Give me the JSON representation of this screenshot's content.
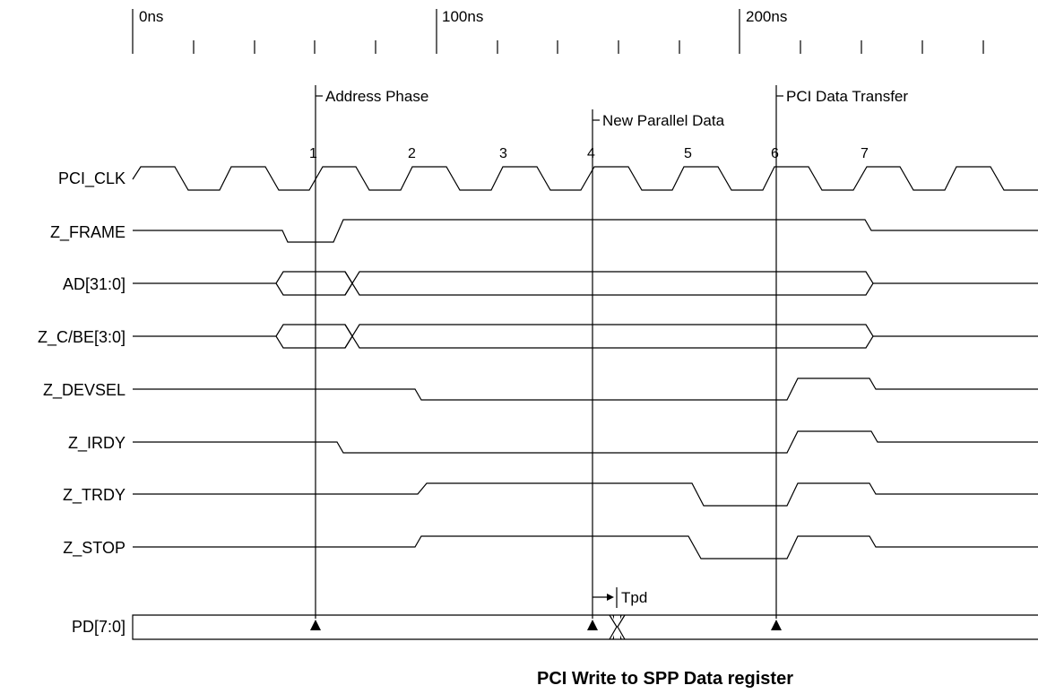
{
  "title": "PCI Write to SPP Data register",
  "time_axis": {
    "major_labels": [
      "0ns",
      "100ns",
      "200ns"
    ]
  },
  "signals": {
    "pci_clk": "PCI_CLK",
    "z_frame": "Z_FRAME",
    "ad": "AD[31:0]",
    "z_cbe": "Z_C/BE[3:0]",
    "z_devsel": "Z_DEVSEL",
    "z_irdy": "Z_IRDY",
    "z_trdy": "Z_TRDY",
    "z_stop": "Z_STOP",
    "pd": "PD[7:0]"
  },
  "markers": {
    "address_phase": "Address Phase",
    "new_parallel_data": "New Parallel Data",
    "pci_data_transfer": "PCI Data Transfer",
    "tpd": "Tpd"
  },
  "clock_edges": [
    "1",
    "2",
    "3",
    "4",
    "5",
    "6",
    "7"
  ]
}
